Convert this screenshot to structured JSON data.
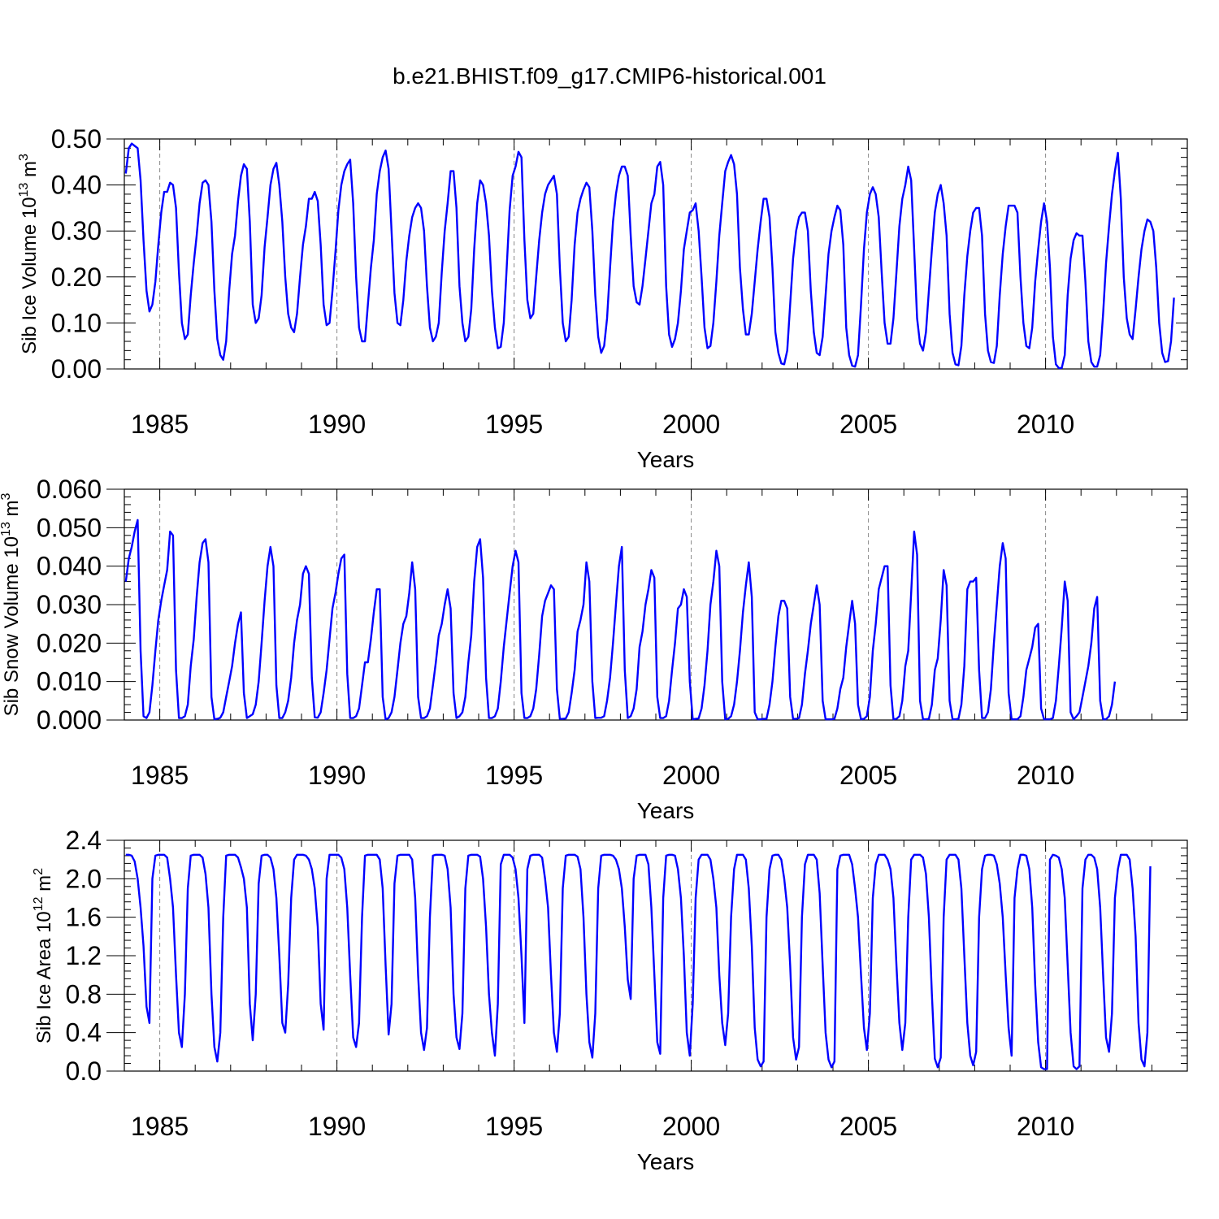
{
  "title": "b.e21.BHIST.f09_g17.CMIP6-historical.001",
  "chart_data": [
    {
      "type": "line",
      "ylabel": "Sib Ice Volume 10",
      "ylabel_exp": "13",
      "ylabel_unit": " m",
      "ylabel_unit_exp": "3",
      "xlabel": "Years",
      "xlim": [
        1984.0,
        2014.0
      ],
      "ylim": [
        0.0,
        0.5
      ],
      "yticks": [
        0.0,
        0.1,
        0.2,
        0.3,
        0.4,
        0.5
      ],
      "ytick_labels": [
        "0.00",
        "0.10",
        "0.20",
        "0.30",
        "0.40",
        "0.50"
      ],
      "xticks": [
        1985,
        1990,
        1995,
        2000,
        2005,
        2010
      ],
      "xtick_labels": [
        "1985",
        "1990",
        "1995",
        "2000",
        "2005",
        "2010"
      ],
      "grid": "dashed vertical lines at labeled years",
      "series_color": "#0000ff",
      "x_start": 1984.0417,
      "x_step": 0.08333,
      "values": [
        0.425,
        0.48,
        0.49,
        0.485,
        0.48,
        0.41,
        0.28,
        0.17,
        0.125,
        0.14,
        0.19,
        0.27,
        0.34,
        0.385,
        0.385,
        0.405,
        0.4,
        0.35,
        0.21,
        0.1,
        0.065,
        0.075,
        0.16,
        0.23,
        0.29,
        0.36,
        0.405,
        0.41,
        0.4,
        0.32,
        0.17,
        0.065,
        0.03,
        0.02,
        0.06,
        0.17,
        0.25,
        0.29,
        0.365,
        0.42,
        0.445,
        0.435,
        0.32,
        0.14,
        0.1,
        0.11,
        0.16,
        0.265,
        0.33,
        0.4,
        0.435,
        0.448,
        0.4,
        0.32,
        0.2,
        0.12,
        0.09,
        0.08,
        0.12,
        0.2,
        0.27,
        0.31,
        0.37,
        0.37,
        0.385,
        0.365,
        0.27,
        0.14,
        0.095,
        0.1,
        0.17,
        0.255,
        0.345,
        0.4,
        0.43,
        0.445,
        0.455,
        0.36,
        0.2,
        0.09,
        0.06,
        0.06,
        0.14,
        0.22,
        0.28,
        0.38,
        0.43,
        0.46,
        0.475,
        0.435,
        0.3,
        0.165,
        0.1,
        0.095,
        0.15,
        0.235,
        0.29,
        0.33,
        0.35,
        0.36,
        0.35,
        0.3,
        0.18,
        0.09,
        0.06,
        0.07,
        0.1,
        0.21,
        0.3,
        0.36,
        0.43,
        0.43,
        0.35,
        0.18,
        0.1,
        0.06,
        0.07,
        0.13,
        0.26,
        0.36,
        0.41,
        0.4,
        0.36,
        0.29,
        0.17,
        0.09,
        0.045,
        0.048,
        0.1,
        0.22,
        0.345,
        0.42,
        0.44,
        0.472,
        0.46,
        0.28,
        0.15,
        0.11,
        0.12,
        0.2,
        0.28,
        0.34,
        0.38,
        0.4,
        0.41,
        0.42,
        0.38,
        0.22,
        0.1,
        0.06,
        0.07,
        0.15,
        0.27,
        0.34,
        0.37,
        0.39,
        0.405,
        0.395,
        0.3,
        0.16,
        0.07,
        0.035,
        0.05,
        0.11,
        0.22,
        0.32,
        0.38,
        0.42,
        0.44,
        0.44,
        0.42,
        0.29,
        0.18,
        0.145,
        0.14,
        0.18,
        0.24,
        0.3,
        0.36,
        0.38,
        0.44,
        0.45,
        0.4,
        0.18,
        0.075,
        0.048,
        0.065,
        0.1,
        0.17,
        0.26,
        0.3,
        0.34,
        0.345,
        0.36,
        0.3,
        0.2,
        0.09,
        0.045,
        0.05,
        0.1,
        0.19,
        0.29,
        0.36,
        0.43,
        0.45,
        0.465,
        0.445,
        0.38,
        0.22,
        0.13,
        0.075,
        0.075,
        0.12,
        0.19,
        0.26,
        0.32,
        0.37,
        0.37,
        0.33,
        0.22,
        0.08,
        0.035,
        0.012,
        0.01,
        0.04,
        0.14,
        0.24,
        0.3,
        0.33,
        0.34,
        0.34,
        0.3,
        0.17,
        0.08,
        0.035,
        0.03,
        0.07,
        0.16,
        0.25,
        0.3,
        0.33,
        0.355,
        0.345,
        0.27,
        0.09,
        0.03,
        0.007,
        0.005,
        0.03,
        0.14,
        0.26,
        0.34,
        0.38,
        0.395,
        0.38,
        0.33,
        0.21,
        0.1,
        0.055,
        0.055,
        0.11,
        0.21,
        0.31,
        0.37,
        0.4,
        0.44,
        0.41,
        0.26,
        0.11,
        0.055,
        0.04,
        0.08,
        0.17,
        0.26,
        0.34,
        0.38,
        0.4,
        0.36,
        0.29,
        0.12,
        0.035,
        0.01,
        0.008,
        0.05,
        0.16,
        0.245,
        0.3,
        0.34,
        0.35,
        0.35,
        0.29,
        0.12,
        0.04,
        0.015,
        0.013,
        0.05,
        0.16,
        0.25,
        0.31,
        0.355,
        0.355,
        0.355,
        0.34,
        0.2,
        0.1,
        0.05,
        0.045,
        0.09,
        0.19,
        0.26,
        0.32,
        0.36,
        0.32,
        0.22,
        0.07,
        0.01,
        0.002,
        0.002,
        0.03,
        0.16,
        0.24,
        0.28,
        0.295,
        0.29,
        0.29,
        0.19,
        0.06,
        0.015,
        0.005,
        0.005,
        0.03,
        0.12,
        0.23,
        0.31,
        0.38,
        0.43,
        0.47,
        0.37,
        0.2,
        0.11,
        0.075,
        0.065,
        0.13,
        0.2,
        0.26,
        0.3,
        0.325,
        0.32,
        0.3,
        0.22,
        0.1,
        0.035,
        0.015,
        0.017,
        0.06,
        0.155
      ]
    },
    {
      "type": "line",
      "ylabel": "Sib Snow Volume 10",
      "ylabel_exp": "13",
      "ylabel_unit": " m",
      "ylabel_unit_exp": "3",
      "xlabel": "Years",
      "xlim": [
        1984.0,
        2014.0
      ],
      "ylim": [
        0.0,
        0.06
      ],
      "yticks": [
        0.0,
        0.01,
        0.02,
        0.03,
        0.04,
        0.05,
        0.06
      ],
      "ytick_labels": [
        "0.000",
        "0.010",
        "0.020",
        "0.030",
        "0.040",
        "0.050",
        "0.060"
      ],
      "xticks": [
        1985,
        1990,
        1995,
        2000,
        2005,
        2010
      ],
      "xtick_labels": [
        "1985",
        "1990",
        "1995",
        "2000",
        "2005",
        "2010"
      ],
      "grid": "dashed vertical lines at labeled years",
      "series_color": "#0000ff",
      "x_start": 1984.0417,
      "x_step": 0.08333,
      "values": [
        0.036,
        0.042,
        0.045,
        0.049,
        0.052,
        0.018,
        0.001,
        0.0005,
        0.002,
        0.009,
        0.018,
        0.026,
        0.031,
        0.035,
        0.039,
        0.049,
        0.048,
        0.013,
        0.0005,
        0.0005,
        0.001,
        0.004,
        0.014,
        0.021,
        0.032,
        0.041,
        0.046,
        0.047,
        0.041,
        0.006,
        0.0002,
        0.0003,
        0.0006,
        0.002,
        0.006,
        0.01,
        0.014,
        0.02,
        0.025,
        0.028,
        0.007,
        0.0005,
        0.001,
        0.0015,
        0.004,
        0.01,
        0.02,
        0.031,
        0.04,
        0.045,
        0.04,
        0.009,
        0.0005,
        0.0005,
        0.002,
        0.005,
        0.011,
        0.02,
        0.026,
        0.03,
        0.038,
        0.04,
        0.038,
        0.011,
        0.0007,
        0.0006,
        0.002,
        0.007,
        0.013,
        0.021,
        0.029,
        0.033,
        0.038,
        0.042,
        0.043,
        0.012,
        0.0005,
        0.0005,
        0.001,
        0.003,
        0.009,
        0.015,
        0.015,
        0.021,
        0.028,
        0.034,
        0.034,
        0.006,
        0.0002,
        0.0005,
        0.002,
        0.006,
        0.013,
        0.02,
        0.025,
        0.027,
        0.033,
        0.041,
        0.034,
        0.006,
        0.0005,
        0.0005,
        0.001,
        0.003,
        0.009,
        0.015,
        0.022,
        0.025,
        0.03,
        0.034,
        0.029,
        0.007,
        0.0005,
        0.001,
        0.002,
        0.006,
        0.015,
        0.022,
        0.036,
        0.045,
        0.047,
        0.037,
        0.011,
        0.0005,
        0.0005,
        0.001,
        0.003,
        0.01,
        0.019,
        0.026,
        0.033,
        0.04,
        0.044,
        0.041,
        0.007,
        0.0005,
        0.0005,
        0.001,
        0.003,
        0.008,
        0.017,
        0.027,
        0.031,
        0.033,
        0.035,
        0.034,
        0.008,
        0.0003,
        0.0003,
        0.0004,
        0.002,
        0.007,
        0.013,
        0.023,
        0.026,
        0.03,
        0.041,
        0.036,
        0.01,
        0.0005,
        0.0006,
        0.0006,
        0.001,
        0.005,
        0.011,
        0.02,
        0.03,
        0.04,
        0.045,
        0.013,
        0.0005,
        0.001,
        0.003,
        0.008,
        0.019,
        0.023,
        0.03,
        0.034,
        0.039,
        0.037,
        0.006,
        0.0005,
        0.0005,
        0.001,
        0.005,
        0.013,
        0.02,
        0.029,
        0.03,
        0.034,
        0.032,
        0.01,
        0.0002,
        0.0003,
        0.0004,
        0.003,
        0.009,
        0.018,
        0.03,
        0.036,
        0.044,
        0.04,
        0.01,
        0.0002,
        0.0003,
        0.001,
        0.004,
        0.01,
        0.018,
        0.028,
        0.035,
        0.041,
        0.032,
        0.002,
        0.0002,
        0.0002,
        0.0003,
        0.0003,
        0.004,
        0.01,
        0.019,
        0.027,
        0.031,
        0.031,
        0.029,
        0.006,
        0.0003,
        0.0003,
        0.0005,
        0.004,
        0.012,
        0.018,
        0.025,
        0.03,
        0.035,
        0.03,
        0.005,
        0.0002,
        0.0002,
        0.0002,
        0.0003,
        0.003,
        0.008,
        0.011,
        0.019,
        0.025,
        0.031,
        0.025,
        0.004,
        0.0002,
        0.0003,
        0.001,
        0.006,
        0.018,
        0.025,
        0.034,
        0.037,
        0.04,
        0.04,
        0.009,
        0.0002,
        0.0003,
        0.001,
        0.005,
        0.014,
        0.018,
        0.033,
        0.049,
        0.043,
        0.005,
        0.0002,
        0.0002,
        0.0003,
        0.004,
        0.013,
        0.016,
        0.026,
        0.039,
        0.035,
        0.005,
        0.0002,
        0.0002,
        0.0003,
        0.004,
        0.014,
        0.034,
        0.036,
        0.036,
        0.037,
        0.013,
        0.0005,
        0.0005,
        0.002,
        0.008,
        0.02,
        0.03,
        0.04,
        0.046,
        0.042,
        0.007,
        0.0002,
        0.0002,
        0.0002,
        0.001,
        0.006,
        0.013,
        0.016,
        0.019,
        0.024,
        0.025,
        0.003,
        0.0002,
        0.0002,
        0.0002,
        0.0005,
        0.005,
        0.014,
        0.024,
        0.036,
        0.031,
        0.002,
        0.0002,
        0.001,
        0.002,
        0.006,
        0.01,
        0.014,
        0.02,
        0.029,
        0.032,
        0.005,
        0.0002,
        0.0002,
        0.001,
        0.004,
        0.01
      ]
    },
    {
      "type": "line",
      "ylabel": "Sib Ice Area 10",
      "ylabel_exp": "12",
      "ylabel_unit": " m",
      "ylabel_unit_exp": "2",
      "xlabel": "Years",
      "xlim": [
        1984.0,
        2014.0
      ],
      "ylim": [
        0.0,
        2.4
      ],
      "yticks": [
        0.0,
        0.4,
        0.8,
        1.2,
        1.6,
        2.0,
        2.4
      ],
      "ytick_labels": [
        "0.0",
        "0.4",
        "0.8",
        "1.2",
        "1.6",
        "2.0",
        "2.4"
      ],
      "xticks": [
        1985,
        1990,
        1995,
        2000,
        2005,
        2010
      ],
      "xtick_labels": [
        "1985",
        "1990",
        "1995",
        "2000",
        "2005",
        "2010"
      ],
      "grid": "dashed vertical lines at labeled years",
      "series_color": "#0000ff",
      "x_start": 1984.0417,
      "x_step": 0.08333,
      "values": [
        2.25,
        2.25,
        2.24,
        2.18,
        2.0,
        1.7,
        1.3,
        0.67,
        0.5,
        2.0,
        2.24,
        2.25,
        2.25,
        2.25,
        2.22,
        2.0,
        1.7,
        1.0,
        0.4,
        0.25,
        0.8,
        1.9,
        2.24,
        2.25,
        2.25,
        2.25,
        2.22,
        2.05,
        1.7,
        0.8,
        0.25,
        0.1,
        0.4,
        1.6,
        2.24,
        2.25,
        2.25,
        2.25,
        2.22,
        2.12,
        2.0,
        1.7,
        0.7,
        0.32,
        0.8,
        1.95,
        2.24,
        2.25,
        2.25,
        2.22,
        2.1,
        1.8,
        1.2,
        0.5,
        0.4,
        0.9,
        1.8,
        2.2,
        2.25,
        2.25,
        2.25,
        2.24,
        2.2,
        2.1,
        1.9,
        1.5,
        0.7,
        0.43,
        2.0,
        2.25,
        2.25,
        2.25,
        2.25,
        2.22,
        2.1,
        1.7,
        1.0,
        0.35,
        0.25,
        0.5,
        1.6,
        2.24,
        2.25,
        2.25,
        2.25,
        2.25,
        2.2,
        1.9,
        1.1,
        0.38,
        0.7,
        1.95,
        2.24,
        2.25,
        2.25,
        2.25,
        2.25,
        2.2,
        1.8,
        1.0,
        0.4,
        0.22,
        0.45,
        1.6,
        2.24,
        2.25,
        2.25,
        2.25,
        2.24,
        2.1,
        1.7,
        0.8,
        0.35,
        0.23,
        0.6,
        1.9,
        2.24,
        2.25,
        2.25,
        2.25,
        2.23,
        2.0,
        1.5,
        0.8,
        0.4,
        0.16,
        0.7,
        2.15,
        2.25,
        2.25,
        2.25,
        2.22,
        2.1,
        1.8,
        1.2,
        0.5,
        2.1,
        2.24,
        2.25,
        2.25,
        2.25,
        2.22,
        2.0,
        1.7,
        1.0,
        0.4,
        0.2,
        0.6,
        1.9,
        2.24,
        2.25,
        2.25,
        2.25,
        2.23,
        2.1,
        1.6,
        0.8,
        0.3,
        0.14,
        0.6,
        1.9,
        2.24,
        2.25,
        2.25,
        2.25,
        2.24,
        2.2,
        2.1,
        1.9,
        1.5,
        0.95,
        0.75,
        2.0,
        2.24,
        2.25,
        2.25,
        2.25,
        2.15,
        1.7,
        1.0,
        0.3,
        0.18,
        1.8,
        2.24,
        2.25,
        2.25,
        2.24,
        2.1,
        1.8,
        1.2,
        0.4,
        0.16,
        0.7,
        1.8,
        2.2,
        2.25,
        2.25,
        2.25,
        2.2,
        2.0,
        1.7,
        1.0,
        0.5,
        0.27,
        0.6,
        1.6,
        2.1,
        2.25,
        2.25,
        2.25,
        2.2,
        1.9,
        1.3,
        0.45,
        0.12,
        0.05,
        0.1,
        1.6,
        2.1,
        2.24,
        2.25,
        2.25,
        2.2,
        2.0,
        1.7,
        1.1,
        0.35,
        0.12,
        0.25,
        1.6,
        2.15,
        2.25,
        2.25,
        2.25,
        2.2,
        1.85,
        1.1,
        0.4,
        0.12,
        0.04,
        0.1,
        2.1,
        2.24,
        2.25,
        2.25,
        2.25,
        2.15,
        1.9,
        1.6,
        1.0,
        0.45,
        0.22,
        0.6,
        1.8,
        2.15,
        2.25,
        2.25,
        2.25,
        2.2,
        2.1,
        1.8,
        1.1,
        0.5,
        0.22,
        0.5,
        1.6,
        2.2,
        2.25,
        2.25,
        2.25,
        2.22,
        2.05,
        1.6,
        0.8,
        0.13,
        0.04,
        0.14,
        1.6,
        2.2,
        2.25,
        2.25,
        2.25,
        2.2,
        1.9,
        1.2,
        0.5,
        0.16,
        0.06,
        0.2,
        1.6,
        2.1,
        2.24,
        2.25,
        2.25,
        2.24,
        2.15,
        1.95,
        1.6,
        1.0,
        0.45,
        0.16,
        1.8,
        2.1,
        2.25,
        2.25,
        2.24,
        2.1,
        1.7,
        0.9,
        0.3,
        0.04,
        0.02,
        0.02,
        2.2,
        2.25,
        2.24,
        2.22,
        2.1,
        1.8,
        1.1,
        0.4,
        0.05,
        0.02,
        0.05,
        1.9,
        2.2,
        2.25,
        2.25,
        2.22,
        2.1,
        1.7,
        1.0,
        0.35,
        0.2,
        0.6,
        1.8,
        2.1,
        2.25,
        2.25,
        2.25,
        2.2,
        1.9,
        1.4,
        0.5,
        0.12,
        0.05,
        0.4,
        2.13
      ]
    }
  ]
}
